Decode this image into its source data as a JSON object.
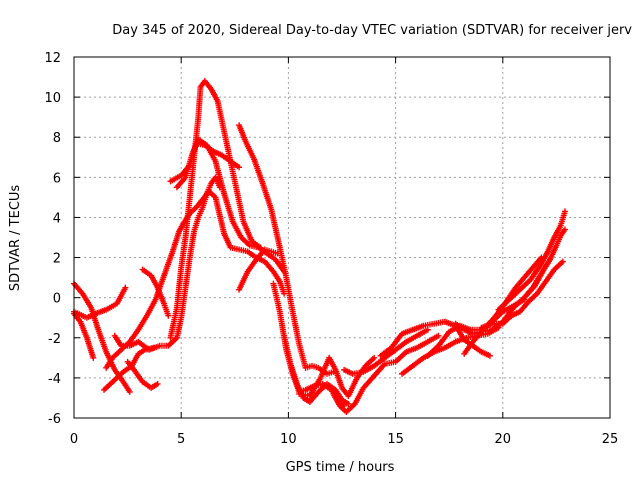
{
  "chart_data": {
    "type": "scatter",
    "title": "Day 345 of 2020, Sidereal Day-to-day VTEC variation (SDTVAR) for receiver jerv",
    "xlabel": "GPS time / hours",
    "ylabel": "SDTVAR / TECUs",
    "xlim": [
      0,
      25
    ],
    "ylim": [
      -6,
      12
    ],
    "xticks": [
      "0",
      "5",
      "10",
      "15",
      "20",
      "25"
    ],
    "yticks": [
      "-6",
      "-4",
      "-2",
      "0",
      "2",
      "4",
      "6",
      "8",
      "10",
      "12"
    ],
    "grid": true,
    "marker": "plus",
    "color": "#ff0000",
    "series": [
      {
        "name": "track-1",
        "points": [
          [
            0.0,
            0.7
          ],
          [
            0.4,
            0.2
          ],
          [
            0.8,
            -0.5
          ],
          [
            1.1,
            -1.5
          ],
          [
            1.5,
            -2.7
          ],
          [
            1.9,
            -3.6
          ],
          [
            2.3,
            -4.2
          ],
          [
            2.6,
            -4.7
          ]
        ]
      },
      {
        "name": "track-2",
        "points": [
          [
            0.0,
            -0.8
          ],
          [
            0.3,
            -1.2
          ],
          [
            0.6,
            -2.0
          ],
          [
            0.9,
            -3.0
          ]
        ]
      },
      {
        "name": "track-3",
        "points": [
          [
            0.0,
            -0.7
          ],
          [
            0.6,
            -1.0
          ],
          [
            1.0,
            -0.8
          ],
          [
            1.5,
            -0.6
          ],
          [
            2.0,
            -0.3
          ],
          [
            2.4,
            0.5
          ]
        ]
      },
      {
        "name": "track-4",
        "points": [
          [
            1.9,
            -1.9
          ],
          [
            2.2,
            -2.4
          ],
          [
            2.6,
            -2.4
          ],
          [
            3.0,
            -2.2
          ],
          [
            3.5,
            -2.6
          ],
          [
            4.0,
            -2.4
          ],
          [
            4.4,
            -2.4
          ],
          [
            4.8,
            -2.0
          ],
          [
            5.0,
            -1.0
          ],
          [
            5.2,
            0.5
          ],
          [
            5.4,
            2.0
          ],
          [
            5.6,
            3.3
          ],
          [
            5.8,
            4.0
          ],
          [
            6.0,
            4.5
          ],
          [
            6.2,
            5.2
          ],
          [
            6.4,
            5.7
          ],
          [
            6.6,
            6.0
          ],
          [
            6.8,
            5.5
          ]
        ]
      },
      {
        "name": "track-5",
        "points": [
          [
            1.5,
            -3.5
          ],
          [
            1.8,
            -3.0
          ],
          [
            2.2,
            -2.6
          ],
          [
            2.6,
            -2.2
          ],
          [
            3.0,
            -1.6
          ],
          [
            3.4,
            -0.9
          ],
          [
            3.8,
            -0.1
          ],
          [
            4.2,
            1.1
          ],
          [
            4.6,
            2.3
          ],
          [
            4.9,
            3.3
          ],
          [
            5.1,
            3.7
          ],
          [
            5.4,
            4.2
          ],
          [
            5.7,
            4.5
          ],
          [
            6.0,
            4.9
          ],
          [
            6.3,
            5.3
          ],
          [
            6.6,
            5.0
          ],
          [
            7.0,
            3.2
          ],
          [
            7.3,
            2.5
          ],
          [
            7.7,
            2.4
          ],
          [
            8.1,
            2.3
          ],
          [
            8.5,
            2.0
          ],
          [
            8.9,
            1.8
          ],
          [
            9.3,
            1.3
          ],
          [
            9.6,
            0.8
          ],
          [
            9.8,
            0.2
          ]
        ]
      },
      {
        "name": "track-6",
        "points": [
          [
            1.4,
            -4.6
          ],
          [
            1.8,
            -4.2
          ],
          [
            2.3,
            -3.7
          ],
          [
            2.7,
            -3.4
          ],
          [
            3.0,
            -2.8
          ],
          [
            3.3,
            -2.6
          ],
          [
            3.7,
            -2.5
          ]
        ]
      },
      {
        "name": "track-7",
        "points": [
          [
            2.5,
            -3.2
          ],
          [
            2.8,
            -3.6
          ],
          [
            3.2,
            -4.2
          ],
          [
            3.6,
            -4.5
          ],
          [
            3.9,
            -4.3
          ]
        ]
      },
      {
        "name": "track-8",
        "points": [
          [
            3.2,
            1.4
          ],
          [
            3.6,
            1.1
          ],
          [
            3.9,
            0.5
          ],
          [
            4.2,
            -0.3
          ],
          [
            4.4,
            -0.9
          ]
        ]
      },
      {
        "name": "track-9",
        "points": [
          [
            4.5,
            -2.0
          ],
          [
            4.8,
            -0.5
          ],
          [
            5.0,
            1.5
          ],
          [
            5.2,
            3.0
          ],
          [
            5.4,
            5.0
          ],
          [
            5.6,
            7.0
          ],
          [
            5.8,
            9.0
          ],
          [
            5.9,
            10.5
          ],
          [
            6.1,
            10.8
          ],
          [
            6.4,
            10.4
          ],
          [
            6.7,
            9.8
          ],
          [
            7.0,
            8.3
          ],
          [
            7.3,
            6.8
          ],
          [
            7.6,
            5.3
          ],
          [
            7.9,
            3.8
          ],
          [
            8.3,
            2.8
          ],
          [
            8.7,
            2.5
          ]
        ]
      },
      {
        "name": "track-10",
        "points": [
          [
            4.5,
            5.8
          ],
          [
            5.0,
            6.1
          ],
          [
            5.4,
            6.6
          ],
          [
            5.7,
            7.7
          ],
          [
            6.1,
            7.6
          ],
          [
            6.5,
            7.3
          ],
          [
            6.9,
            7.1
          ],
          [
            7.3,
            6.8
          ],
          [
            7.7,
            6.5
          ]
        ]
      },
      {
        "name": "track-11",
        "points": [
          [
            4.8,
            5.5
          ],
          [
            5.2,
            6.0
          ],
          [
            5.5,
            7.1
          ],
          [
            5.8,
            7.9
          ],
          [
            6.2,
            7.6
          ],
          [
            6.6,
            6.8
          ],
          [
            7.0,
            5.2
          ],
          [
            7.4,
            3.8
          ],
          [
            7.8,
            3.0
          ],
          [
            8.2,
            2.6
          ],
          [
            8.6,
            2.5
          ],
          [
            9.0,
            2.2
          ],
          [
            9.4,
            1.9
          ],
          [
            9.8,
            1.3
          ]
        ]
      },
      {
        "name": "track-12",
        "points": [
          [
            7.7,
            0.4
          ],
          [
            8.1,
            1.3
          ],
          [
            8.5,
            1.9
          ],
          [
            8.9,
            2.4
          ],
          [
            9.2,
            2.3
          ],
          [
            9.5,
            2.2
          ]
        ]
      },
      {
        "name": "track-13",
        "points": [
          [
            7.7,
            8.6
          ],
          [
            8.0,
            7.8
          ],
          [
            8.4,
            6.9
          ],
          [
            8.8,
            5.7
          ],
          [
            9.2,
            4.4
          ],
          [
            9.6,
            2.5
          ],
          [
            9.9,
            1.0
          ],
          [
            10.2,
            -0.7
          ],
          [
            10.5,
            -2.3
          ],
          [
            10.8,
            -3.5
          ],
          [
            11.1,
            -3.4
          ],
          [
            11.4,
            -3.5
          ],
          [
            11.8,
            -3.8
          ],
          [
            12.1,
            -3.7
          ]
        ]
      },
      {
        "name": "track-14",
        "points": [
          [
            9.3,
            0.7
          ],
          [
            9.6,
            -0.7
          ],
          [
            9.9,
            -2.6
          ],
          [
            10.2,
            -3.8
          ],
          [
            10.5,
            -4.7
          ],
          [
            10.8,
            -4.6
          ],
          [
            11.2,
            -4.4
          ],
          [
            11.6,
            -4.3
          ],
          [
            12.0,
            -4.6
          ],
          [
            12.3,
            -5.0
          ],
          [
            12.6,
            -5.4
          ]
        ]
      },
      {
        "name": "track-15",
        "points": [
          [
            9.8,
            -1.9
          ],
          [
            10.1,
            -3.3
          ],
          [
            10.4,
            -4.3
          ],
          [
            10.7,
            -5.0
          ],
          [
            11.0,
            -5.2
          ],
          [
            11.4,
            -4.7
          ],
          [
            11.8,
            -4.3
          ],
          [
            12.2,
            -4.6
          ],
          [
            12.5,
            -5.1
          ],
          [
            12.8,
            -5.3
          ]
        ]
      },
      {
        "name": "track-16",
        "points": [
          [
            10.5,
            -4.8
          ],
          [
            11.0,
            -4.9
          ],
          [
            11.5,
            -4.0
          ],
          [
            11.9,
            -3.0
          ],
          [
            12.2,
            -3.6
          ],
          [
            12.5,
            -4.5
          ],
          [
            12.8,
            -4.9
          ],
          [
            13.2,
            -4.0
          ],
          [
            13.6,
            -3.4
          ],
          [
            14.0,
            -3.0
          ]
        ]
      },
      {
        "name": "track-17",
        "points": [
          [
            12.1,
            -4.8
          ],
          [
            12.4,
            -5.4
          ],
          [
            12.7,
            -5.7
          ],
          [
            13.1,
            -5.3
          ],
          [
            13.5,
            -4.5
          ],
          [
            14.0,
            -3.9
          ],
          [
            14.5,
            -3.3
          ],
          [
            15.0,
            -3.2
          ],
          [
            15.5,
            -2.7
          ],
          [
            16.0,
            -2.5
          ],
          [
            16.5,
            -2.2
          ],
          [
            17.0,
            -1.9
          ]
        ]
      },
      {
        "name": "track-18",
        "points": [
          [
            12.6,
            -3.6
          ],
          [
            13.0,
            -3.8
          ],
          [
            13.5,
            -3.7
          ],
          [
            14.0,
            -3.4
          ],
          [
            14.5,
            -3.0
          ],
          [
            15.0,
            -2.6
          ],
          [
            15.5,
            -2.2
          ],
          [
            16.0,
            -1.9
          ],
          [
            16.5,
            -1.6
          ]
        ]
      },
      {
        "name": "track-19",
        "points": [
          [
            14.3,
            -2.9
          ],
          [
            14.8,
            -2.5
          ],
          [
            15.3,
            -1.8
          ],
          [
            15.8,
            -1.6
          ],
          [
            16.3,
            -1.4
          ],
          [
            16.8,
            -1.3
          ],
          [
            17.3,
            -1.2
          ]
        ]
      },
      {
        "name": "track-20",
        "points": [
          [
            15.3,
            -3.8
          ],
          [
            15.8,
            -3.4
          ],
          [
            16.3,
            -3.0
          ],
          [
            16.8,
            -2.7
          ],
          [
            17.3,
            -2.5
          ],
          [
            17.8,
            -2.2
          ],
          [
            18.3,
            -2.0
          ],
          [
            18.8,
            -1.9
          ],
          [
            19.3,
            -1.8
          ],
          [
            19.8,
            -1.5
          ]
        ]
      },
      {
        "name": "track-21",
        "points": [
          [
            16.5,
            -2.9
          ],
          [
            17.0,
            -2.4
          ],
          [
            17.5,
            -1.7
          ],
          [
            18.0,
            -1.4
          ],
          [
            18.5,
            -1.6
          ],
          [
            19.0,
            -1.6
          ],
          [
            19.5,
            -1.2
          ],
          [
            20.0,
            -0.7
          ],
          [
            20.5,
            -0.4
          ],
          [
            21.0,
            -0.1
          ]
        ]
      },
      {
        "name": "track-22",
        "points": [
          [
            17.3,
            -1.2
          ],
          [
            17.8,
            -1.4
          ],
          [
            18.2,
            -2.1
          ],
          [
            18.6,
            -2.4
          ],
          [
            19.0,
            -2.7
          ],
          [
            19.4,
            -2.9
          ]
        ]
      },
      {
        "name": "track-23",
        "points": [
          [
            17.8,
            -1.3
          ],
          [
            18.2,
            -1.6
          ],
          [
            18.6,
            -1.8
          ],
          [
            19.0,
            -1.7
          ],
          [
            19.5,
            -1.6
          ],
          [
            20.0,
            -1.2
          ],
          [
            20.5,
            -0.5
          ],
          [
            21.0,
            0.0
          ],
          [
            21.5,
            0.6
          ],
          [
            21.9,
            1.4
          ],
          [
            22.2,
            1.9
          ]
        ]
      },
      {
        "name": "track-24",
        "points": [
          [
            18.2,
            -2.8
          ],
          [
            18.6,
            -2.2
          ],
          [
            19.1,
            -1.6
          ],
          [
            19.6,
            -1.0
          ],
          [
            20.1,
            -0.3
          ],
          [
            20.6,
            0.5
          ],
          [
            21.0,
            1.0
          ],
          [
            21.4,
            1.5
          ],
          [
            21.8,
            2.0
          ]
        ]
      },
      {
        "name": "track-25",
        "points": [
          [
            19.0,
            -1.5
          ],
          [
            19.5,
            -1.3
          ],
          [
            20.0,
            -1.3
          ],
          [
            20.4,
            -0.9
          ],
          [
            20.8,
            -0.7
          ],
          [
            21.2,
            -0.2
          ],
          [
            21.6,
            0.2
          ],
          [
            22.0,
            0.8
          ],
          [
            22.4,
            1.4
          ],
          [
            22.8,
            1.8
          ]
        ]
      },
      {
        "name": "track-26",
        "points": [
          [
            19.8,
            -0.6
          ],
          [
            20.3,
            -0.1
          ],
          [
            20.8,
            0.4
          ],
          [
            21.3,
            0.9
          ],
          [
            21.8,
            1.7
          ],
          [
            22.1,
            2.3
          ],
          [
            22.4,
            3.0
          ],
          [
            22.7,
            3.6
          ],
          [
            22.9,
            4.3
          ]
        ]
      },
      {
        "name": "track-27",
        "points": [
          [
            21.0,
            0.0
          ],
          [
            21.4,
            0.5
          ],
          [
            21.8,
            1.2
          ],
          [
            22.2,
            1.9
          ],
          [
            22.5,
            2.6
          ],
          [
            22.7,
            3.1
          ],
          [
            22.9,
            3.4
          ]
        ]
      }
    ]
  }
}
